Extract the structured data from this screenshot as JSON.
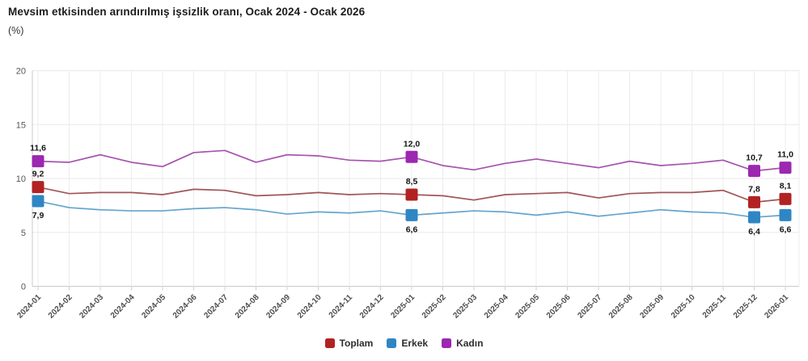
{
  "page": {
    "background": "#ffffff"
  },
  "chart_data": {
    "type": "line",
    "title": "Mevsim etkisinden arındırılmış işsizlik oranı, Ocak 2024 - Ocak 2026",
    "unit_label": "(%)",
    "x_categories": [
      "2024-01",
      "2024-02",
      "2024-03",
      "2024-04",
      "2024-05",
      "2024-06",
      "2024-07",
      "2024-08",
      "2024-09",
      "2024-10",
      "2024-11",
      "2024-12",
      "2025-01",
      "2025-02",
      "2025-03",
      "2025-04",
      "2025-05",
      "2025-06",
      "2025-07",
      "2025-08",
      "2025-09",
      "2025-10",
      "2025-11",
      "2025-12",
      "2026-01"
    ],
    "ylim": [
      0,
      20
    ],
    "yticks": [
      0,
      5,
      10,
      15,
      20
    ],
    "grid": true,
    "legend_position": "bottom-center",
    "decimal_separator": ",",
    "labeled_indices": [
      0,
      12,
      23,
      24
    ],
    "labeled_values": {
      "2024-01": {
        "Toplam": "9,2",
        "Erkek": "7,9",
        "Kadın": "11,6"
      },
      "2025-01": {
        "Toplam": "8,5",
        "Erkek": "6,6",
        "Kadın": "12,0"
      },
      "2025-12": {
        "Toplam": "7,8",
        "Erkek": "6,4",
        "Kadın": "10,7"
      },
      "2026-01": {
        "Toplam": "8,1",
        "Erkek": "6,6",
        "Kadın": "11,0"
      }
    },
    "series": [
      {
        "key": "toplam",
        "name": "Toplam",
        "color": "#b22222",
        "line_color": "#a05558",
        "label_side": "above",
        "values": [
          9.2,
          8.6,
          8.7,
          8.7,
          8.5,
          9.0,
          8.9,
          8.4,
          8.5,
          8.7,
          8.5,
          8.6,
          8.5,
          8.4,
          8.0,
          8.5,
          8.6,
          8.7,
          8.2,
          8.6,
          8.7,
          8.7,
          8.9,
          7.8,
          8.1
        ]
      },
      {
        "key": "erkek",
        "name": "Erkek",
        "color": "#2f86c4",
        "line_color": "#64a5cd",
        "label_side": "below",
        "values": [
          7.9,
          7.3,
          7.1,
          7.0,
          7.0,
          7.2,
          7.3,
          7.1,
          6.7,
          6.9,
          6.8,
          7.0,
          6.6,
          6.8,
          7.0,
          6.9,
          6.6,
          6.9,
          6.5,
          6.8,
          7.1,
          6.9,
          6.8,
          6.4,
          6.6
        ]
      },
      {
        "key": "kadin",
        "name": "Kadın",
        "color": "#9c27b0",
        "line_color": "#a653ae",
        "label_side": "above",
        "values": [
          11.6,
          11.5,
          12.2,
          11.5,
          11.1,
          12.4,
          12.6,
          11.5,
          12.2,
          12.1,
          11.7,
          11.6,
          12.0,
          11.2,
          10.8,
          11.4,
          11.8,
          11.4,
          11.0,
          11.6,
          11.2,
          11.4,
          11.7,
          10.7,
          11.0
        ]
      }
    ]
  }
}
